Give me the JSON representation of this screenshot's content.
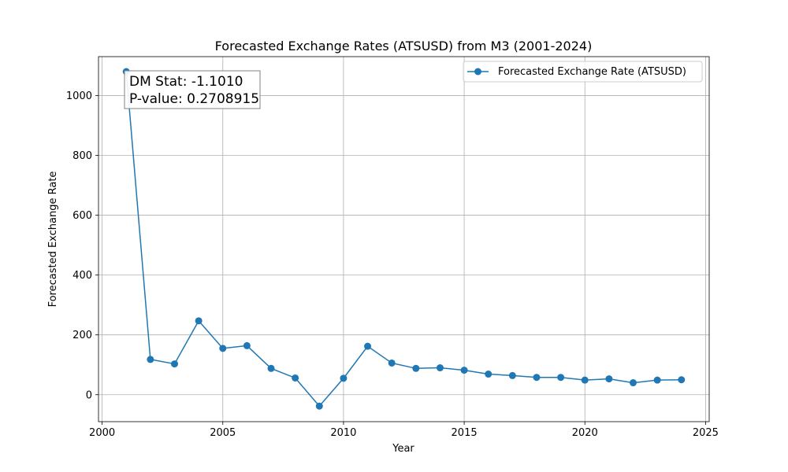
{
  "chart_data": {
    "type": "line",
    "title": "Forecasted Exchange Rates (ATSUSD) from M3 (2001-2024)",
    "xlabel": "Year",
    "ylabel": "Forecasted Exchange Rate",
    "xlim": [
      1999.85,
      2025.15
    ],
    "ylim": [
      -90,
      1130
    ],
    "xticks": [
      2000,
      2005,
      2010,
      2015,
      2020,
      2025
    ],
    "yticks": [
      0,
      200,
      400,
      600,
      800,
      1000
    ],
    "grid": true,
    "legend_position": "top-right",
    "series": [
      {
        "name": "Forecasted Exchange Rate (ATSUSD)",
        "color": "#1f77b4",
        "marker": "circle",
        "x": [
          2001,
          2002,
          2003,
          2004,
          2005,
          2006,
          2007,
          2008,
          2009,
          2010,
          2011,
          2012,
          2013,
          2014,
          2015,
          2016,
          2017,
          2018,
          2019,
          2020,
          2021,
          2022,
          2023,
          2024
        ],
        "y": [
          1080,
          118,
          103,
          247,
          155,
          164,
          88,
          56,
          -38,
          55,
          162,
          106,
          88,
          90,
          82,
          69,
          64,
          58,
          58,
          49,
          53,
          40,
          49,
          50
        ]
      }
    ],
    "annotation": {
      "lines": [
        "DM Stat: -1.1010",
        "P-value: 0.2708915"
      ],
      "position": "top-left"
    }
  }
}
